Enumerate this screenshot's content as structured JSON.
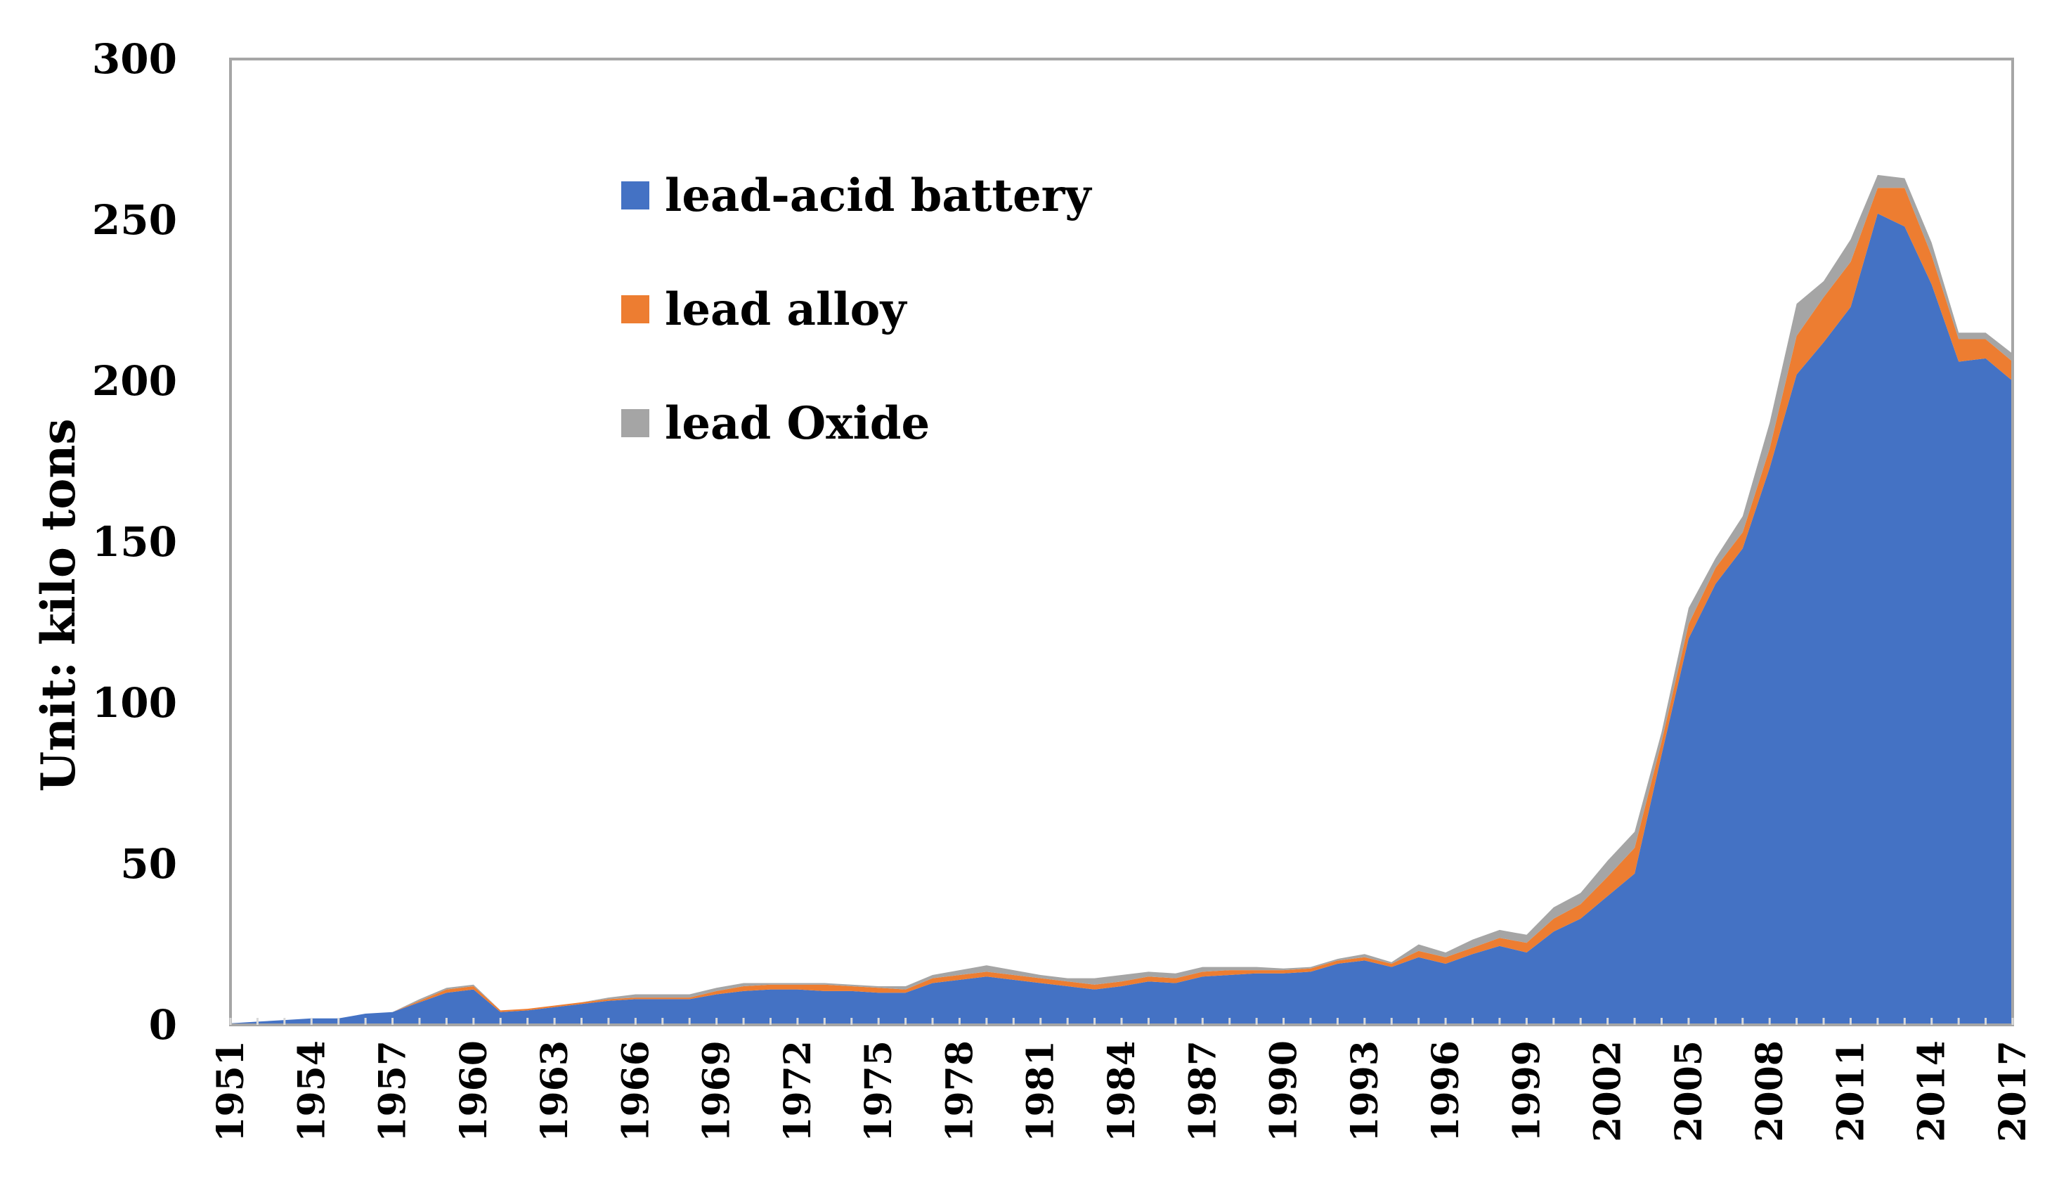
{
  "chart_data": {
    "type": "area",
    "stacked": true,
    "title": "",
    "xlabel": "",
    "ylabel": "Unit:  kilo tons",
    "ylim": [
      0,
      300
    ],
    "yticks": [
      0,
      50,
      100,
      150,
      200,
      250,
      300
    ],
    "xlim": [
      1951,
      2017
    ],
    "xtick_labels": [
      "1951",
      "1954",
      "1957",
      "1960",
      "1963",
      "1966",
      "1969",
      "1972",
      "1975",
      "1978",
      "1981",
      "1984",
      "1987",
      "1990",
      "1993",
      "1996",
      "1999",
      "2002",
      "2005",
      "2008",
      "2011",
      "2014",
      "2017"
    ],
    "grid": false,
    "legend_position": "upper-left",
    "x": [
      1951,
      1952,
      1953,
      1954,
      1955,
      1956,
      1957,
      1958,
      1959,
      1960,
      1961,
      1962,
      1963,
      1964,
      1965,
      1966,
      1967,
      1968,
      1969,
      1970,
      1971,
      1972,
      1973,
      1974,
      1975,
      1976,
      1977,
      1978,
      1979,
      1980,
      1981,
      1982,
      1983,
      1984,
      1985,
      1986,
      1987,
      1988,
      1989,
      1990,
      1991,
      1992,
      1993,
      1994,
      1995,
      1996,
      1997,
      1998,
      1999,
      2000,
      2001,
      2002,
      2003,
      2004,
      2005,
      2006,
      2007,
      2008,
      2009,
      2010,
      2011,
      2012,
      2013,
      2014,
      2015,
      2016,
      2017
    ],
    "series": [
      {
        "name": "lead-acid battery",
        "color": "#4472C4",
        "values": [
          0.5,
          1,
          1.5,
          2,
          2,
          3.5,
          4,
          7,
          10,
          11,
          4,
          4.5,
          5.5,
          6.5,
          7.5,
          8,
          8,
          8,
          9.5,
          10.5,
          11,
          11,
          10.5,
          10.5,
          10,
          10,
          13,
          14,
          15,
          14,
          13,
          12,
          11,
          12,
          13.5,
          13,
          15,
          15.5,
          16,
          16,
          16.5,
          19,
          20,
          18,
          21,
          19,
          22,
          24.5,
          22.5,
          29,
          33,
          40,
          47,
          84,
          120,
          137,
          148,
          173,
          202,
          212,
          223,
          252,
          248,
          230,
          206,
          207,
          200
        ]
      },
      {
        "name": "lead alloy",
        "color": "#ED7D31",
        "values": [
          0,
          0,
          0,
          0,
          0,
          0,
          0,
          0.5,
          1,
          1,
          0.5,
          0.5,
          0.5,
          0.5,
          0.5,
          0.5,
          0.5,
          0.5,
          1,
          1.5,
          1.5,
          1.5,
          2,
          1.5,
          1.5,
          1,
          1.5,
          1.5,
          1.5,
          1.5,
          1.5,
          1.5,
          1.5,
          1.5,
          1.5,
          1.5,
          1.5,
          1.5,
          1,
          1,
          1,
          1,
          1,
          1,
          2,
          2,
          2,
          2.5,
          3,
          4,
          4.5,
          6,
          8,
          4,
          4.5,
          5,
          5,
          6,
          12,
          14,
          14,
          8,
          12,
          9,
          7,
          6,
          6
        ]
      },
      {
        "name": "lead Oxide",
        "color": "#A5A5A5",
        "values": [
          0,
          0,
          0,
          0,
          0,
          0,
          0,
          0.5,
          0.5,
          0.5,
          0,
          0,
          0,
          0,
          0.5,
          1,
          1,
          1,
          1,
          1,
          0.5,
          0.5,
          0.5,
          0.5,
          0.5,
          1,
          1,
          1.5,
          2,
          1.5,
          1,
          1,
          2,
          2,
          1.5,
          1.5,
          1.5,
          1,
          1,
          0.5,
          0.5,
          0.5,
          1,
          0.5,
          2,
          1.5,
          2.5,
          2.5,
          2.5,
          3.5,
          3.5,
          5,
          5,
          3,
          5,
          3,
          5,
          8,
          10,
          5,
          7,
          4,
          3,
          4,
          2,
          2,
          2.5
        ]
      }
    ]
  }
}
